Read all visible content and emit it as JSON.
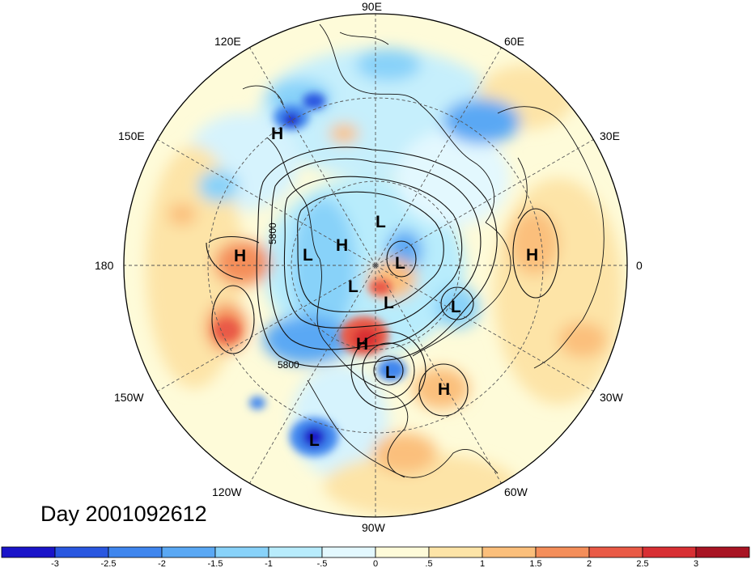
{
  "caption": "Day 2001092612",
  "longitude_labels": {
    "90E": "90E",
    "60E": "60E",
    "30E": "30E",
    "0": "0",
    "30W": "30W",
    "60W": "60W",
    "90W": "90W",
    "120W": "120W",
    "150W": "150W",
    "180": "180",
    "150E": "150E",
    "120E": "120E"
  },
  "contour_labels": [
    "5800",
    "5800"
  ],
  "pressure_systems": [
    {
      "type": "H",
      "label": "H"
    },
    {
      "type": "H",
      "label": "H"
    },
    {
      "type": "H",
      "label": "H"
    },
    {
      "type": "H",
      "label": "H"
    },
    {
      "type": "H",
      "label": "H"
    },
    {
      "type": "H",
      "label": "H"
    },
    {
      "type": "L",
      "label": "L"
    },
    {
      "type": "L",
      "label": "L"
    },
    {
      "type": "L",
      "label": "L"
    },
    {
      "type": "L",
      "label": "L"
    },
    {
      "type": "L",
      "label": "L"
    },
    {
      "type": "L",
      "label": "L"
    },
    {
      "type": "L",
      "label": "L"
    },
    {
      "type": "L",
      "label": "L"
    }
  ],
  "colorbar": {
    "colors": [
      "#1a14c9",
      "#2957e0",
      "#3f86ee",
      "#5aa8f4",
      "#88d2f9",
      "#b8ecfc",
      "#e3f8fe",
      "#fefbd9",
      "#fde4a7",
      "#fbbf7b",
      "#f48e5a",
      "#e95a46",
      "#d82f33",
      "#a81423"
    ],
    "tick_labels": [
      "-3",
      "-2.5",
      "-2",
      "-1.5",
      "-1",
      "-.5",
      "0",
      ".5",
      "1",
      "1.5",
      "2",
      "2.5",
      "3"
    ]
  }
}
